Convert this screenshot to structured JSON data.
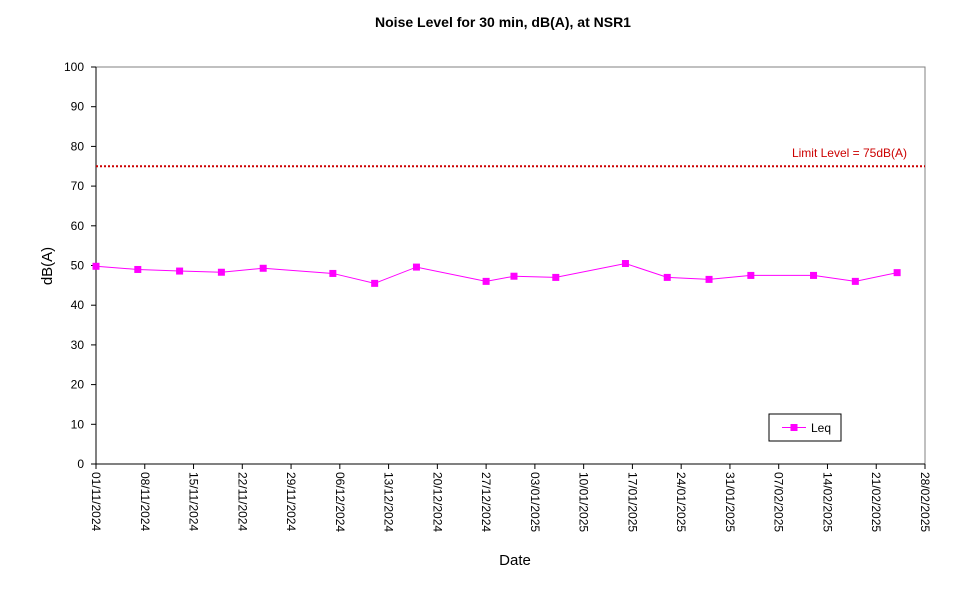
{
  "chart_data": {
    "type": "line",
    "title": "Noise Level for 30 min, dB(A), at NSR1",
    "xlabel": "Date",
    "ylabel": "dB(A)",
    "ylim": [
      0,
      100
    ],
    "y_ticks": [
      "0",
      "10",
      "20",
      "30",
      "40",
      "50",
      "60",
      "70",
      "80",
      "90",
      "100"
    ],
    "xlim": [
      "2024-11-01",
      "2025-02-28"
    ],
    "x_tick_labels": [
      "01/11/2024",
      "08/11/2024",
      "15/11/2024",
      "22/11/2024",
      "29/11/2024",
      "06/12/2024",
      "13/12/2024",
      "20/12/2024",
      "27/12/2024",
      "03/01/2025",
      "10/01/2025",
      "17/01/2025",
      "24/01/2025",
      "31/01/2025",
      "07/02/2025",
      "14/02/2025",
      "21/02/2025",
      "28/02/2025"
    ],
    "series": [
      {
        "name": "Leq",
        "color": "#ff00ff",
        "marker": "square",
        "x": [
          "2024-11-01",
          "2024-11-07",
          "2024-11-13",
          "2024-11-19",
          "2024-11-25",
          "2024-12-05",
          "2024-12-11",
          "2024-12-17",
          "2024-12-27",
          "2024-12-31",
          "2025-01-06",
          "2025-01-16",
          "2025-01-22",
          "2025-01-28",
          "2025-02-03",
          "2025-02-12",
          "2025-02-18",
          "2025-02-24"
        ],
        "values": [
          49.8,
          49.0,
          48.6,
          48.3,
          49.3,
          48.0,
          45.5,
          49.6,
          46.0,
          47.3,
          47.0,
          50.5,
          47.0,
          46.5,
          47.5,
          47.5,
          46.0,
          48.2
        ]
      }
    ],
    "limit_line": {
      "value": 75,
      "label": "Limit Level  = 75dB(A)",
      "color": "#cc0000"
    },
    "grid": false,
    "legend": {
      "position": "bottom-right",
      "entries": [
        "Leq"
      ]
    }
  }
}
